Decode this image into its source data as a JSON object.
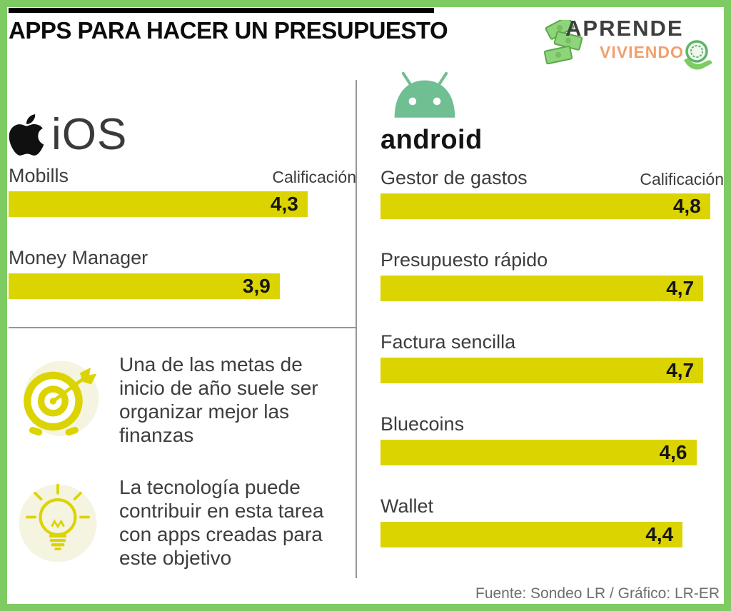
{
  "header": {
    "title": "APPS PARA HACER UN PRESUPUESTO",
    "logo": {
      "line1": "APRENDE",
      "line2": "VIVIENDO"
    }
  },
  "platforms": {
    "ios_label": "iOS",
    "android_label": "android"
  },
  "chart_data": {
    "type": "bar",
    "orientation": "horizontal",
    "title": "APPS PARA HACER UN PRESUPUESTO",
    "value_label": "Calificación",
    "value_range": [
      0,
      5
    ],
    "max_value": 5,
    "bar_color": "#dcd400",
    "groups": [
      {
        "platform": "iOS",
        "apps": [
          {
            "name": "Mobills",
            "value": 4.3,
            "label": "4,3"
          },
          {
            "name": "Money Manager",
            "value": 3.9,
            "label": "3,9"
          }
        ]
      },
      {
        "platform": "android",
        "apps": [
          {
            "name": "Gestor de gastos",
            "value": 4.8,
            "label": "4,8"
          },
          {
            "name": "Presupuesto rápido",
            "value": 4.7,
            "label": "4,7"
          },
          {
            "name": "Factura sencilla",
            "value": 4.7,
            "label": "4,7"
          },
          {
            "name": "Bluecoins",
            "value": 4.6,
            "label": "4,6"
          },
          {
            "name": "Wallet",
            "value": 4.4,
            "label": "4,4"
          }
        ]
      }
    ]
  },
  "notes": [
    {
      "icon": "target-icon",
      "text": "Una de las metas de inicio de año suele ser organizar mejor las finanzas"
    },
    {
      "icon": "lightbulb-icon",
      "text": "La tecnología puede contribuir en esta tarea con apps creadas para este objetivo"
    }
  ],
  "footer": {
    "source": "Fuente: Sondeo LR / Gráfico: LR-ER"
  },
  "colors": {
    "frame_green": "#7ecb64",
    "bar_yellow": "#dcd400",
    "android_green": "#6fbf92",
    "logo_orange": "#f0a06e",
    "divider_gray": "#969696"
  }
}
